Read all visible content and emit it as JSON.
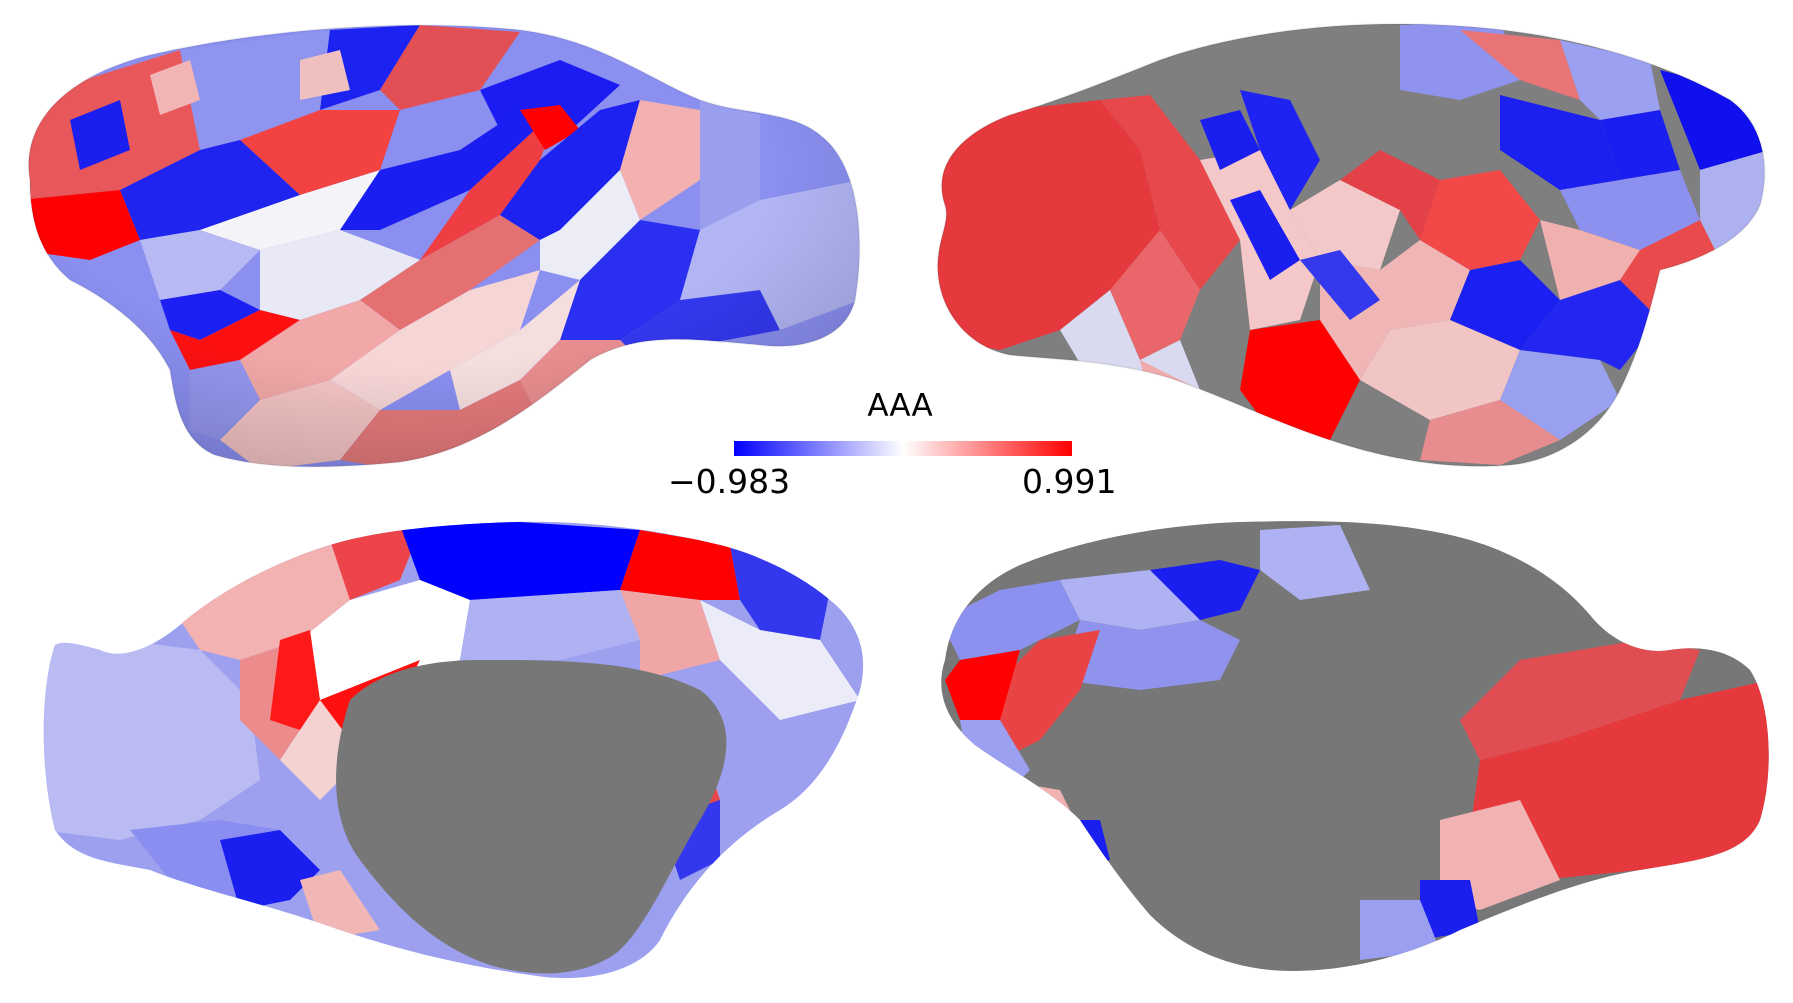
{
  "colorbar": {
    "title": "AAA",
    "min_label": "−0.983",
    "max_label": "0.991",
    "min_value": -0.983,
    "max_value": 0.991,
    "colormap": "bwr",
    "colors": {
      "low": "#0000ff",
      "mid": "#ffffff",
      "high": "#ff0000",
      "no_data": "#808080"
    }
  },
  "views": [
    {
      "name": "left-hemisphere-lateral",
      "position": "top-left"
    },
    {
      "name": "right-hemisphere-lateral",
      "position": "top-right"
    },
    {
      "name": "left-hemisphere-medial",
      "position": "bottom-left"
    },
    {
      "name": "right-hemisphere-medial",
      "position": "bottom-right"
    }
  ]
}
